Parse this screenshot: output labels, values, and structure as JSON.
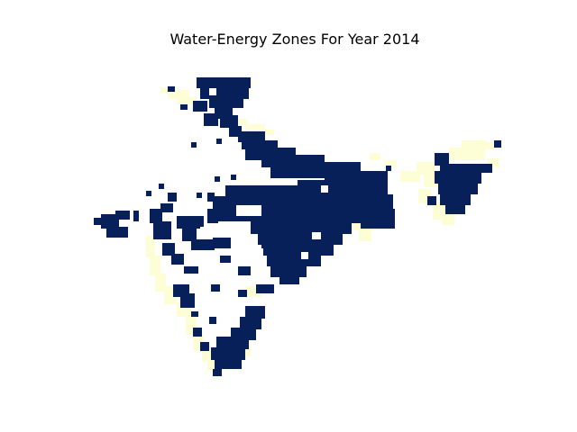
{
  "map": {
    "title": "Water-Energy Zones For Year 2014"
  },
  "zones": {
    "dark_color": "#08205a",
    "light_color": "#fefed6"
  }
}
